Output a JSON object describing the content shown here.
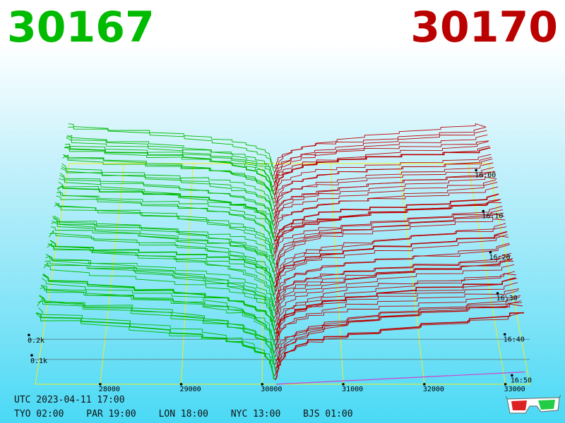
{
  "bid_price": "30167",
  "ask_price": "30170",
  "colors": {
    "bid": "#00bb00",
    "ask": "#bb0000",
    "grid": "#eeee22",
    "background_top": "#ffffff",
    "background_bottom": "#4ad9f5"
  },
  "chart_data": {
    "type": "area",
    "description_type": "3d-order-book-depth-history",
    "x_axis": {
      "ticks": [
        28000,
        29000,
        30000,
        31000,
        32000,
        33000
      ],
      "range": [
        27200,
        33300
      ]
    },
    "time_axis": {
      "ticks": [
        "16:00",
        "16:10",
        "16:20",
        "16:30",
        "16:40",
        "16:50"
      ]
    },
    "depth_axis": {
      "ticks": [
        "0.1k",
        "0.2k"
      ]
    },
    "series": [
      {
        "side": "bid",
        "mid_price": 30167,
        "max_depth_approx": 0.33
      },
      {
        "side": "ask",
        "mid_price": 30170,
        "max_depth_approx": 0.33
      }
    ]
  },
  "footer": {
    "utc": "UTC 2023-04-11 17:00",
    "zones": [
      "TYO 02:00",
      "PAR 19:00",
      "LON 18:00",
      "NYC 13:00",
      "BJS 01:00"
    ]
  },
  "glasses_icon": "3d-glasses-icon"
}
